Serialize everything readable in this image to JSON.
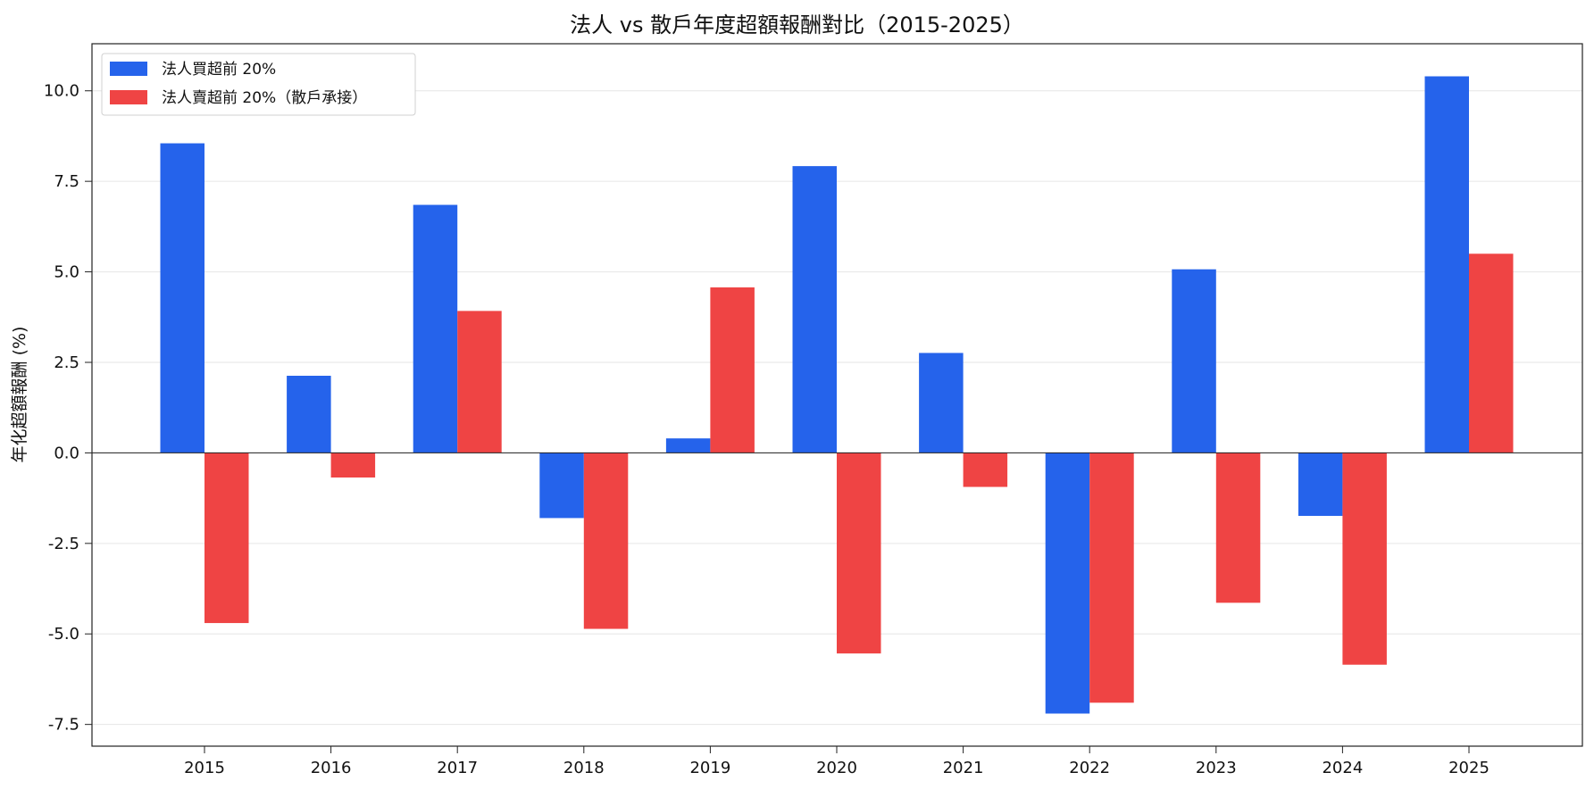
{
  "chart_data": {
    "type": "bar",
    "title": "法人 vs 散戶年度超額報酬對比（2015-2025）",
    "xlabel": "",
    "ylabel": "年化超額報酬 (%)",
    "categories": [
      "2015",
      "2016",
      "2017",
      "2018",
      "2019",
      "2020",
      "2021",
      "2022",
      "2023",
      "2024",
      "2025"
    ],
    "ylim": [
      -8.1,
      11.3
    ],
    "y_ticks": [
      "-7.5",
      "-5.0",
      "-2.5",
      "0.0",
      "2.5",
      "5.0",
      "7.5",
      "10.0"
    ],
    "grid": true,
    "legend": {
      "placement": "top-left"
    },
    "series": [
      {
        "name": "法人買超前 20%",
        "color": "#2563eb",
        "values": [
          8.55,
          2.13,
          6.85,
          -1.8,
          0.4,
          7.92,
          2.76,
          -7.2,
          5.07,
          -1.74,
          10.4
        ]
      },
      {
        "name": "法人賣超前 20%（散戶承接）",
        "color": "#ef4444",
        "values": [
          -4.7,
          -0.68,
          3.92,
          -4.86,
          4.57,
          -5.54,
          -0.94,
          -6.9,
          -4.14,
          -5.85,
          5.5
        ]
      }
    ]
  }
}
